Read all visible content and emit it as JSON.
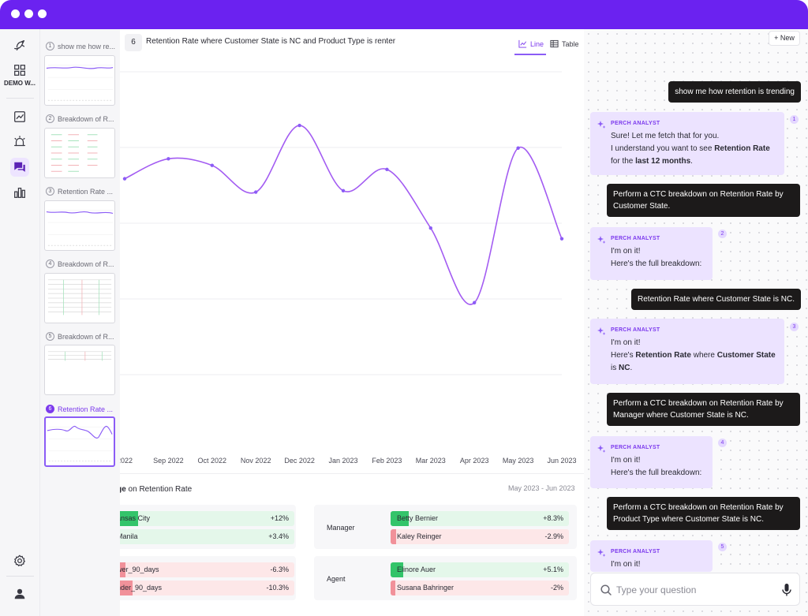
{
  "nav": {
    "workspace_label": "DEMO W...",
    "icons": [
      "bird-logo-icon",
      "grid-icon",
      "trend-chart-icon",
      "alarm-icon",
      "chat-icon",
      "bar-chart-icon",
      "gear-icon",
      "user-icon"
    ]
  },
  "thumbnails": [
    {
      "num": "1",
      "title": "show me how re..."
    },
    {
      "num": "2",
      "title": "Breakdown of R..."
    },
    {
      "num": "3",
      "title": "Retention Rate ..."
    },
    {
      "num": "4",
      "title": "Breakdown of R..."
    },
    {
      "num": "5",
      "title": "Breakdown of R..."
    },
    {
      "num": "6",
      "title": "Retention Rate ..."
    }
  ],
  "main": {
    "tab_num": "6",
    "title": "Retention Rate where Customer State is NC and Product Type is renter",
    "view_line": "Line",
    "view_table": "Table",
    "section_prefix": "nge",
    "section_rest": " on Retention Rate",
    "section_range": "May 2023 - Jun 2023"
  },
  "chart_data": {
    "type": "line",
    "x": [
      "2022",
      "Sep 2022",
      "Oct 2022",
      "Nov 2022",
      "Dec 2022",
      "Jan 2023",
      "Feb 2023",
      "Mar 2023",
      "Apr 2023",
      "May 2023",
      "Jun 2023"
    ],
    "values": [
      0.915,
      0.93,
      0.925,
      0.905,
      0.955,
      0.906,
      0.922,
      0.878,
      0.822,
      0.938,
      0.87
    ],
    "ylim": [
      0.71,
      1.0
    ],
    "grid": true,
    "color": "#a35cf2"
  },
  "breakdown": {
    "left": [
      {
        "name": "ansas City",
        "value": "+12%",
        "kind": "pos",
        "mark": 0.15
      },
      {
        "name": "Manila",
        "value": "+3.4%",
        "kind": "pos",
        "mark": 0.04
      },
      {
        "name": "wer_90_days",
        "value": "-6.3%",
        "kind": "neg",
        "mark": 0.08
      },
      {
        "name": "nder_90_days",
        "value": "-10.3%",
        "kind": "neg",
        "mark": 0.12
      }
    ],
    "right_groups": [
      {
        "label": "Manager",
        "rows": [
          {
            "name": "Betty Bernier",
            "value": "+8.3%",
            "kind": "pos",
            "mark": 0.1
          },
          {
            "name": "Kaley Reinger",
            "value": "-2.9%",
            "kind": "neg",
            "mark": 0.03
          }
        ]
      },
      {
        "label": "Agent",
        "rows": [
          {
            "name": "Elinore Auer",
            "value": "+5.1%",
            "kind": "pos",
            "mark": 0.07
          },
          {
            "name": "Susana Bahringer",
            "value": "-2%",
            "kind": "neg",
            "mark": 0.025
          }
        ]
      }
    ]
  },
  "chat": {
    "new_label": "+ New",
    "analyst_label": "PERCH ANALYST",
    "u1": "show me how retention is trending",
    "b1_num": "1",
    "b1_l1": "Sure! Let me fetch that for you.",
    "b1_l2a": "I understand you want to see ",
    "b1_l2b": "Retention Rate",
    "b1_l3a": "for the ",
    "b1_l3b": "last 12 months",
    "b1_l3c": ".",
    "u2": "Perform a CTC breakdown on Retention Rate by Customer State.",
    "b2_num": "2",
    "b2_l1": "I'm on it!",
    "b2_l2": "Here's the full breakdown:",
    "u3": "Retention Rate where Customer State is NC.",
    "b3_num": "3",
    "b3_l1": "I'm on it!",
    "b3_l2a": "Here's ",
    "b3_l2b": "Retention Rate",
    "b3_l2c": " where ",
    "b3_l2d": "Customer State",
    "b3_l3a": "is ",
    "b3_l3b": "NC",
    "b3_l3c": ".",
    "u4": "Perform a CTC breakdown on Retention Rate by Manager where Customer State is NC.",
    "b4_num": "4",
    "b4_l1": "I'm on it!",
    "b4_l2": "Here's the full breakdown:",
    "u5": "Perform a CTC breakdown on Retention Rate by Product Type where Customer State is NC.",
    "b5_num": "5",
    "b5_l1": "I'm on it!",
    "placeholder": "Type your question"
  }
}
